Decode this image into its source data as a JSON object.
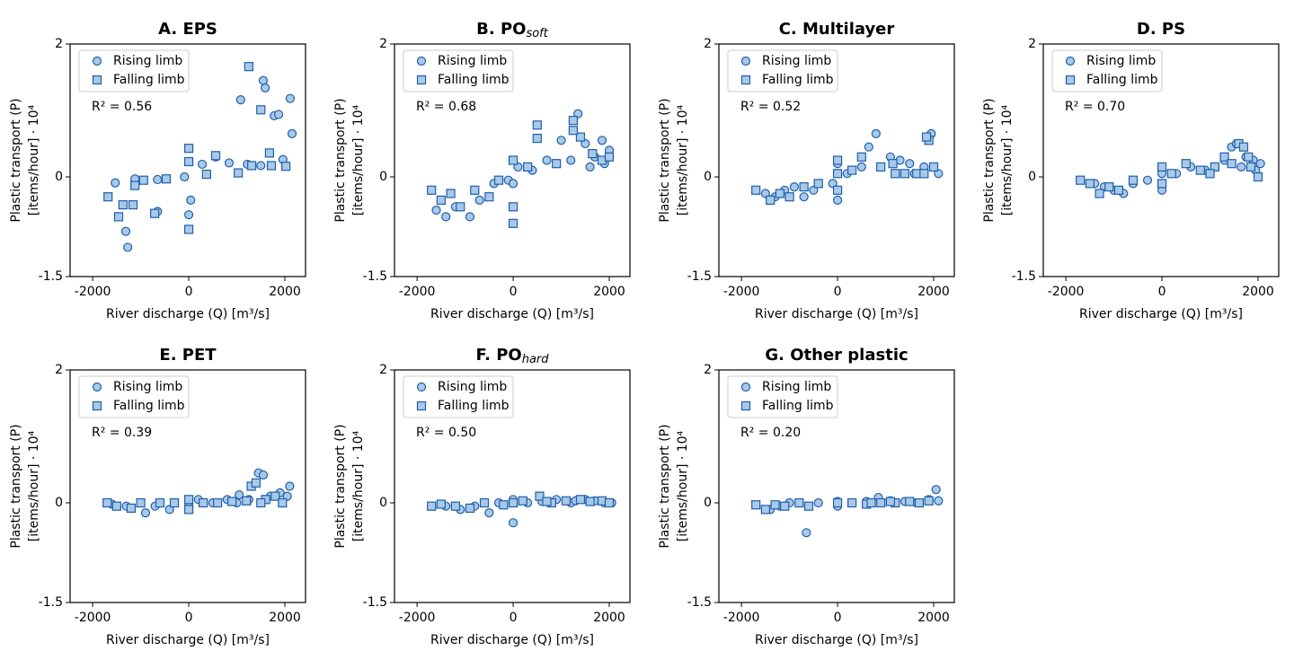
{
  "chart_data": [
    {
      "type": "scatter",
      "title": "A. EPS",
      "xlabel": "River discharge (Q) [m³/s]",
      "ylabel": [
        "Plastic transport (P)",
        "[items/hour] · 10⁴"
      ],
      "annotation": "R² = 0.56",
      "xlim": [
        -2470,
        2430
      ],
      "ylim": [
        -1.5,
        2
      ],
      "xticks": [
        -2000,
        0,
        2000
      ],
      "yticks": [
        -1.5,
        0,
        2
      ],
      "legend": "upper left",
      "edgecolor": "#1f5fa8",
      "series": [
        {
          "name": "Rising limb",
          "marker": "circle",
          "color": "#a9c9ea",
          "x": [
            -1530,
            -1270,
            -1310,
            -1120,
            -650,
            -650,
            -90,
            0,
            40,
            280,
            560,
            840,
            1080,
            1220,
            1500,
            1550,
            1590,
            1780,
            1870,
            1960,
            2110,
            2150
          ],
          "values": [
            -0.09,
            -1.06,
            -0.82,
            -0.03,
            -0.04,
            -0.52,
            0,
            -0.57,
            -0.35,
            0.19,
            0.3,
            0.21,
            1.16,
            0.19,
            0.17,
            1.45,
            1.34,
            0.92,
            0.94,
            0.26,
            1.18,
            0.65
          ]
        },
        {
          "name": "Falling limb",
          "marker": "square",
          "color": "#a9c9ea",
          "x": [
            -1680,
            -1460,
            -1370,
            -1160,
            -1120,
            -940,
            -710,
            -470,
            0,
            0,
            0,
            370,
            560,
            1030,
            1250,
            1500,
            1680,
            1720,
            2020,
            1310
          ],
          "values": [
            -0.3,
            -0.6,
            -0.42,
            -0.42,
            -0.13,
            -0.05,
            -0.55,
            -0.03,
            0.43,
            -0.79,
            0.23,
            0.04,
            0.32,
            0.06,
            1.66,
            1.01,
            0.36,
            0.17,
            0.16,
            0.17
          ]
        }
      ]
    },
    {
      "type": "scatter",
      "title": "B. PO",
      "title_sub": "soft",
      "xlabel": "River discharge (Q) [m³/s]",
      "ylabel": [
        "Plastic transport (P)",
        "[items/hour] · 10⁴"
      ],
      "annotation": "R² = 0.68",
      "xlim": [
        -2470,
        2430
      ],
      "ylim": [
        -1.5,
        2
      ],
      "xticks": [
        -2000,
        0,
        2000
      ],
      "yticks": [
        -1.5,
        0,
        2
      ],
      "legend": "upper left",
      "edgecolor": "#1f5fa8",
      "series": [
        {
          "name": "Rising limb",
          "marker": "circle",
          "color": "#a9c9ea",
          "x": [
            -1600,
            -1400,
            -1200,
            -900,
            -700,
            -400,
            -100,
            0,
            100,
            400,
            700,
            1000,
            1200,
            1350,
            1500,
            1700,
            1850,
            2000,
            1600,
            1900
          ],
          "values": [
            -0.5,
            -0.6,
            -0.45,
            -0.6,
            -0.35,
            -0.1,
            -0.05,
            -0.1,
            0.15,
            0.1,
            0.25,
            0.55,
            0.25,
            0.95,
            0.5,
            0.3,
            0.55,
            0.4,
            0.15,
            0.2
          ]
        },
        {
          "name": "Falling limb",
          "marker": "square",
          "color": "#a9c9ea",
          "x": [
            -1700,
            -1500,
            -1300,
            -1100,
            -800,
            -500,
            -300,
            0,
            0,
            0,
            300,
            500,
            500,
            900,
            1250,
            1400,
            1650,
            1850,
            2000,
            1250
          ],
          "values": [
            -0.2,
            -0.35,
            -0.25,
            -0.45,
            -0.2,
            -0.3,
            -0.05,
            -0.7,
            0.25,
            -0.45,
            0.15,
            0.78,
            0.58,
            0.2,
            0.85,
            0.6,
            0.35,
            0.25,
            0.3,
            0.7
          ]
        }
      ]
    },
    {
      "type": "scatter",
      "title": "C. Multilayer",
      "xlabel": "River discharge (Q) [m³/s]",
      "ylabel": [
        "Plastic transport (P)",
        "[items/hour] · 10⁴"
      ],
      "annotation": "R² = 0.52",
      "xlim": [
        -2470,
        2430
      ],
      "ylim": [
        -1.5,
        2
      ],
      "xticks": [
        -2000,
        0,
        2000
      ],
      "yticks": [
        -1.5,
        0,
        2
      ],
      "legend": "upper left",
      "edgecolor": "#1f5fa8",
      "series": [
        {
          "name": "Rising limb",
          "marker": "circle",
          "color": "#a9c9ea",
          "x": [
            -1500,
            -1300,
            -1100,
            -900,
            -700,
            -500,
            -100,
            0,
            0,
            200,
            500,
            650,
            800,
            1100,
            1300,
            1500,
            1800,
            1950,
            2100,
            1600
          ],
          "values": [
            -0.25,
            -0.3,
            -0.2,
            -0.15,
            -0.3,
            -0.2,
            -0.1,
            -0.35,
            0.2,
            0.05,
            0.15,
            0.45,
            0.65,
            0.3,
            0.25,
            0.2,
            0.15,
            0.65,
            0.05,
            0.05
          ]
        },
        {
          "name": "Falling limb",
          "marker": "square",
          "color": "#a9c9ea",
          "x": [
            -1700,
            -1400,
            -1200,
            -1000,
            -700,
            -400,
            0,
            0,
            0,
            300,
            500,
            900,
            1200,
            1400,
            1650,
            1800,
            1900,
            2000,
            1850,
            1150
          ],
          "values": [
            -0.2,
            -0.35,
            -0.25,
            -0.3,
            -0.15,
            -0.1,
            -0.2,
            0.05,
            0.25,
            0.1,
            0.3,
            0.15,
            0.05,
            0.05,
            0.05,
            0.05,
            0.55,
            0.15,
            0.6,
            0.2
          ]
        }
      ]
    },
    {
      "type": "scatter",
      "title": "D. PS",
      "xlabel": "River discharge (Q) [m³/s]",
      "ylabel": [
        "Plastic transport (P)",
        "[items/hour] · 10⁴"
      ],
      "annotation": "R² = 0.70",
      "xlim": [
        -2470,
        2430
      ],
      "ylim": [
        -1.5,
        2
      ],
      "xticks": [
        -2000,
        0,
        2000
      ],
      "yticks": [
        -1.5,
        0,
        2
      ],
      "legend": "upper left",
      "edgecolor": "#1f5fa8",
      "series": [
        {
          "name": "Rising limb",
          "marker": "circle",
          "color": "#a9c9ea",
          "x": [
            -1400,
            -1200,
            -1000,
            -800,
            -600,
            -300,
            0,
            0,
            300,
            600,
            900,
            1100,
            1300,
            1450,
            1550,
            1750,
            1900,
            2050,
            1650,
            1950
          ],
          "values": [
            -0.1,
            -0.15,
            -0.2,
            -0.25,
            -0.1,
            -0.05,
            -0.2,
            0.05,
            0.05,
            0.15,
            0.1,
            0.15,
            0.25,
            0.45,
            0.5,
            0.3,
            0.25,
            0.2,
            0.15,
            0.1
          ]
        },
        {
          "name": "Falling limb",
          "marker": "square",
          "color": "#a9c9ea",
          "x": [
            -1700,
            -1500,
            -1300,
            -1100,
            -900,
            -600,
            0,
            0,
            200,
            500,
            800,
            1100,
            1300,
            1600,
            1700,
            1800,
            2000,
            1850,
            1450,
            1000
          ],
          "values": [
            -0.05,
            -0.1,
            -0.25,
            -0.15,
            -0.2,
            -0.05,
            0.15,
            -0.1,
            0.05,
            0.2,
            0.1,
            0.15,
            0.3,
            0.5,
            0.45,
            0.3,
            0,
            0.15,
            0.2,
            0.05
          ]
        }
      ]
    },
    {
      "type": "scatter",
      "title": "E. PET",
      "xlabel": "River discharge (Q) [m³/s]",
      "ylabel": [
        "Plastic transport (P)",
        "[items/hour] · 10⁴"
      ],
      "annotation": "R² = 0.39",
      "xlim": [
        -2470,
        2430
      ],
      "ylim": [
        -1.5,
        2
      ],
      "xticks": [
        -2000,
        0,
        2000
      ],
      "yticks": [
        -1.5,
        0,
        2
      ],
      "legend": "upper left",
      "edgecolor": "#1f5fa8",
      "series": [
        {
          "name": "Rising limb",
          "marker": "circle",
          "color": "#a9c9ea",
          "x": [
            -1600,
            -1300,
            -900,
            -700,
            -400,
            0,
            200,
            500,
            800,
            1050,
            1250,
            1450,
            1550,
            1700,
            1900,
            2100,
            2050,
            1000
          ],
          "values": [
            -0.02,
            -0.05,
            -0.15,
            -0.05,
            -0.1,
            -0.05,
            0.05,
            0,
            0.05,
            0.12,
            0.05,
            0.45,
            0.42,
            0.1,
            0.15,
            0.25,
            0.1,
            0
          ]
        },
        {
          "name": "Falling limb",
          "marker": "square",
          "color": "#a9c9ea",
          "x": [
            -1700,
            -1500,
            -1200,
            -1000,
            -600,
            -300,
            0,
            0,
            300,
            600,
            900,
            1200,
            1300,
            1400,
            1600,
            1800,
            1950,
            1500
          ],
          "values": [
            0,
            -0.05,
            -0.08,
            0,
            0,
            0,
            0.05,
            -0.1,
            0,
            0,
            0.02,
            0.03,
            0.25,
            0.3,
            0.05,
            0.1,
            0,
            0
          ]
        }
      ]
    },
    {
      "type": "scatter",
      "title": "F. PO",
      "title_sub": "hard",
      "xlabel": "River discharge (Q) [m³/s]",
      "ylabel": [
        "Plastic transport (P)",
        "[items/hour] · 10⁴"
      ],
      "annotation": "R² = 0.50",
      "xlim": [
        -2470,
        2430
      ],
      "ylim": [
        -1.5,
        2
      ],
      "xticks": [
        -2000,
        0,
        2000
      ],
      "yticks": [
        -1.5,
        0,
        2
      ],
      "legend": "upper left",
      "edgecolor": "#1f5fa8",
      "series": [
        {
          "name": "Rising limb",
          "marker": "circle",
          "color": "#a9c9ea",
          "x": [
            -1400,
            -1100,
            -800,
            -500,
            -300,
            0,
            0,
            300,
            600,
            900,
            1200,
            1500,
            1700,
            1900,
            2050,
            1300
          ],
          "values": [
            -0.05,
            -0.1,
            -0.05,
            -0.15,
            0,
            -0.3,
            0.05,
            0,
            0.02,
            0.05,
            0,
            0.05,
            0.03,
            0,
            0,
            0.03
          ]
        },
        {
          "name": "Falling limb",
          "marker": "square",
          "color": "#a9c9ea",
          "x": [
            -1700,
            -1500,
            -1200,
            -900,
            -600,
            -200,
            0,
            200,
            550,
            800,
            1100,
            1400,
            1600,
            1850,
            2000,
            700
          ],
          "values": [
            -0.05,
            -0.02,
            -0.05,
            -0.08,
            0,
            -0.03,
            0,
            0.03,
            0.1,
            0,
            0.03,
            0.05,
            0.02,
            0.03,
            0,
            0.02
          ]
        }
      ]
    },
    {
      "type": "scatter",
      "title": "G. Other plastic",
      "xlabel": "River discharge (Q) [m³/s]",
      "ylabel": [
        "Plastic transport (P)",
        "[items/hour] · 10⁴"
      ],
      "annotation": "R² = 0.20",
      "xlim": [
        -2470,
        2430
      ],
      "ylim": [
        -1.5,
        2
      ],
      "xticks": [
        -2000,
        0,
        2000
      ],
      "yticks": [
        -1.5,
        0,
        2
      ],
      "legend": "upper left",
      "edgecolor": "#1f5fa8",
      "series": [
        {
          "name": "Rising limb",
          "marker": "circle",
          "color": "#a9c9ea",
          "x": [
            -1400,
            -1200,
            -1000,
            -650,
            -400,
            0,
            0,
            300,
            600,
            850,
            1100,
            1400,
            1650,
            1900,
            2050,
            2100
          ],
          "values": [
            -0.1,
            -0.05,
            0,
            -0.45,
            0,
            -0.05,
            0.02,
            0,
            0.02,
            0.08,
            0.03,
            0.02,
            0,
            0.05,
            0.2,
            0.03
          ]
        },
        {
          "name": "Falling limb",
          "marker": "square",
          "color": "#a9c9ea",
          "x": [
            -1700,
            -1500,
            -1300,
            -1100,
            -800,
            -600,
            0,
            300,
            600,
            900,
            1200,
            1500,
            1700,
            1900,
            700,
            1100
          ],
          "values": [
            -0.03,
            -0.1,
            -0.03,
            -0.05,
            0,
            -0.05,
            0,
            0,
            -0.02,
            0,
            0,
            0.02,
            0,
            0.03,
            0,
            0.02
          ]
        }
      ]
    }
  ]
}
